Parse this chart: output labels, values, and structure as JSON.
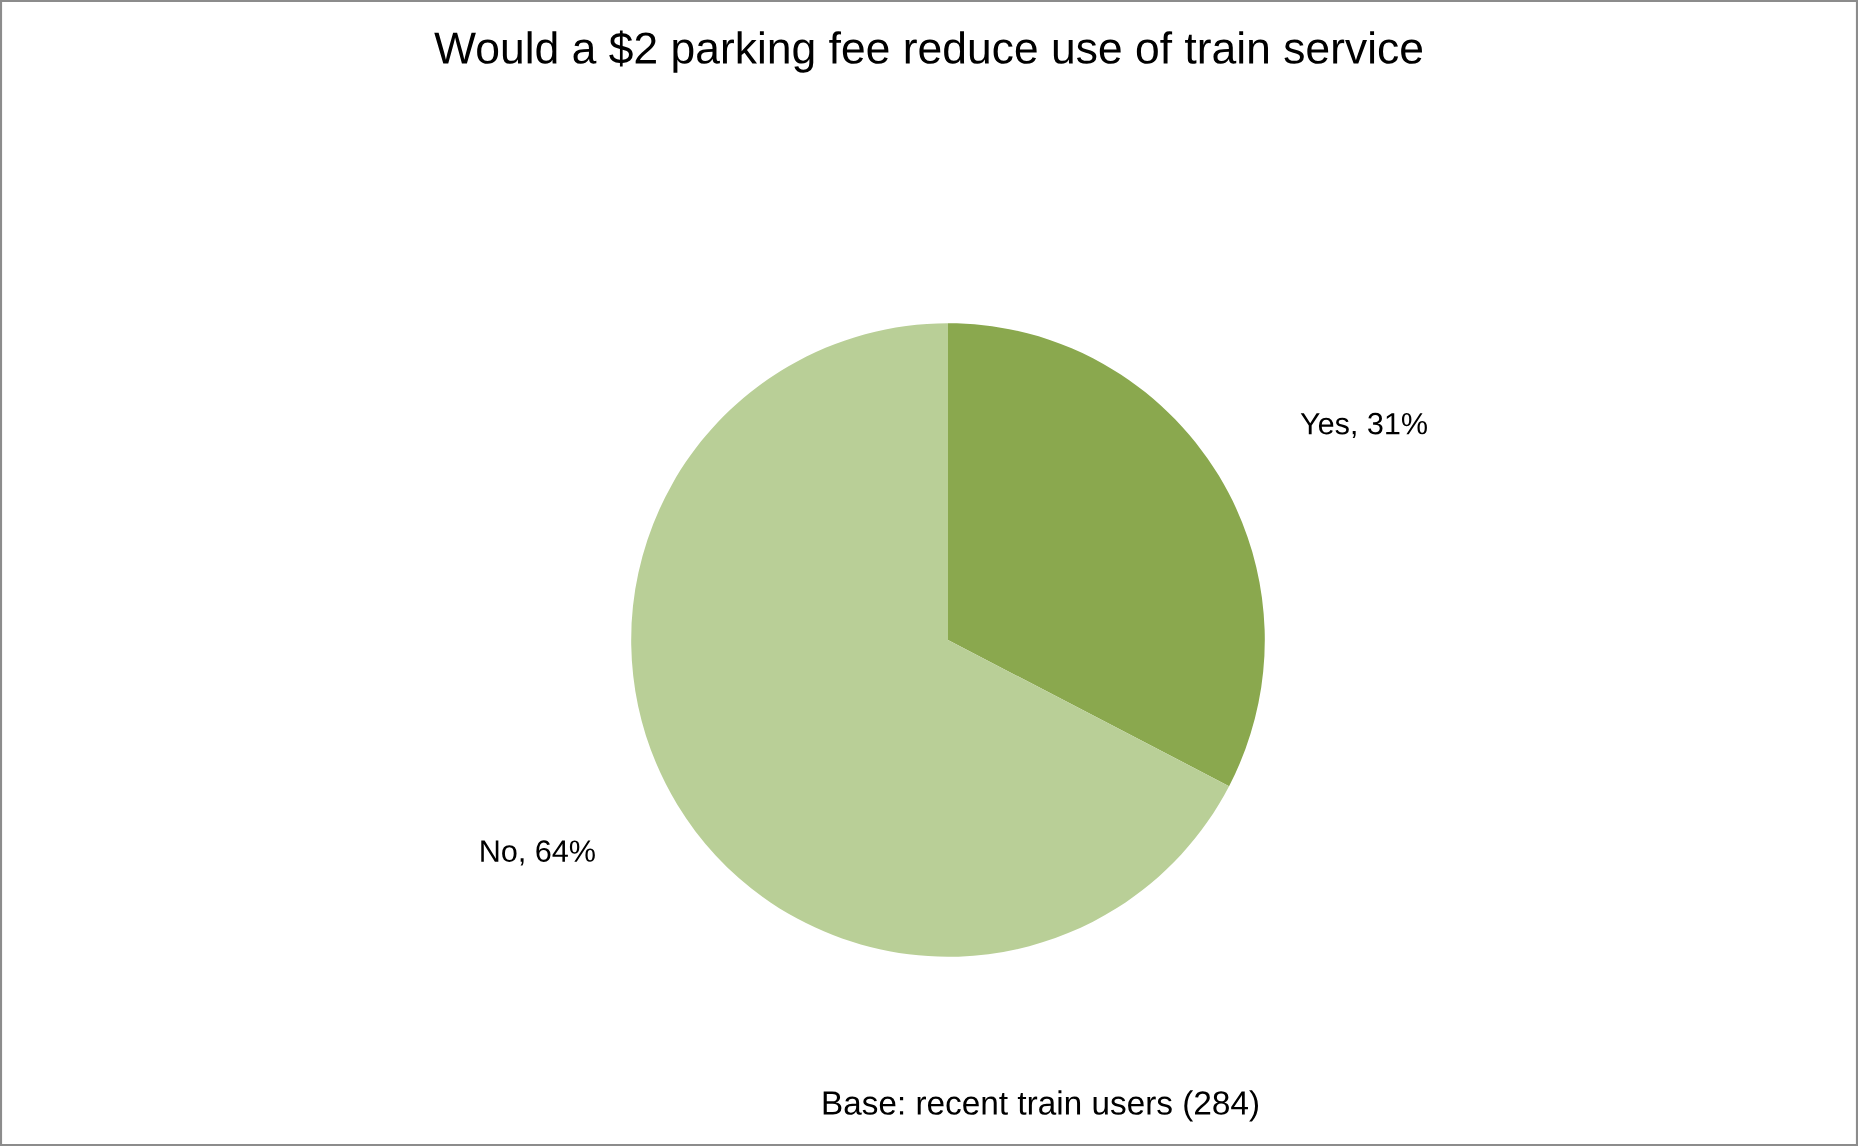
{
  "chart_data": {
    "type": "pie",
    "title": "Would a $2 parking fee reduce use of train service",
    "categories": [
      "Yes",
      "No"
    ],
    "values": [
      31,
      64
    ],
    "colors": [
      "#8aa84e",
      "#b9cf97"
    ],
    "value_labels": [
      "31%",
      "64%"
    ],
    "annotations": [
      "Base: recent train users (284)"
    ],
    "legend": false
  }
}
